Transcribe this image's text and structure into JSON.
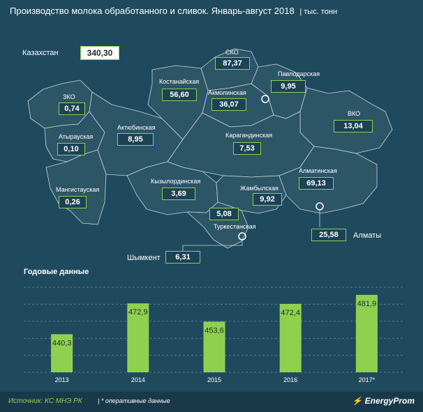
{
  "header": {
    "title": "Производство молока обработанного и сливок. Январь-август 2018",
    "unit": "| тыс. тонн"
  },
  "total": {
    "label": "Казахстан",
    "value": "340,30"
  },
  "regions": [
    {
      "name": "СКО",
      "value": "87,37"
    },
    {
      "name": "Павлодарская",
      "value": "9,95"
    },
    {
      "name": "Костанайская",
      "value": "56,60"
    },
    {
      "name": "Акмолинская",
      "value": "36,07"
    },
    {
      "name": "ЗКО",
      "value": "0,74"
    },
    {
      "name": "ВКО",
      "value": "13,04"
    },
    {
      "name": "Актюбинская",
      "value": "8,95"
    },
    {
      "name": "Карагандинская",
      "value": "7,53"
    },
    {
      "name": "Атырауская",
      "value": "0,10"
    },
    {
      "name": "Алматинская",
      "value": "69,13"
    },
    {
      "name": "Кызылординская",
      "value": "3,69"
    },
    {
      "name": "Мангистауская",
      "value": "0,26"
    },
    {
      "name": "Жамбылская",
      "value": "9,92"
    },
    {
      "name": "Туркестанская",
      "value": "5,08"
    }
  ],
  "cities": [
    {
      "name": "Алматы",
      "value": "25,58"
    },
    {
      "name": "Шымкент",
      "value": "6,31"
    }
  ],
  "annual": {
    "title": "Годовые данные"
  },
  "chart_data": {
    "type": "bar",
    "title": "Годовые данные",
    "categories": [
      "2013",
      "2014",
      "2015",
      "2016",
      "2017*"
    ],
    "values": [
      440.3,
      472.9,
      453.6,
      472.4,
      481.9
    ],
    "value_labels": [
      "440,3",
      "472,9",
      "453,6",
      "472,4",
      "481,9"
    ],
    "ylim": [
      400,
      490
    ],
    "grid": true,
    "bar_color": "#8fd14f"
  },
  "footer": {
    "source": "Источник: КС МНЭ РК",
    "note": "| * оперативные данные",
    "brand": "EnergyProm"
  },
  "colors": {
    "background": "#1f4a5e",
    "map_fill": "#2c5566",
    "accent": "#8fd14f"
  }
}
